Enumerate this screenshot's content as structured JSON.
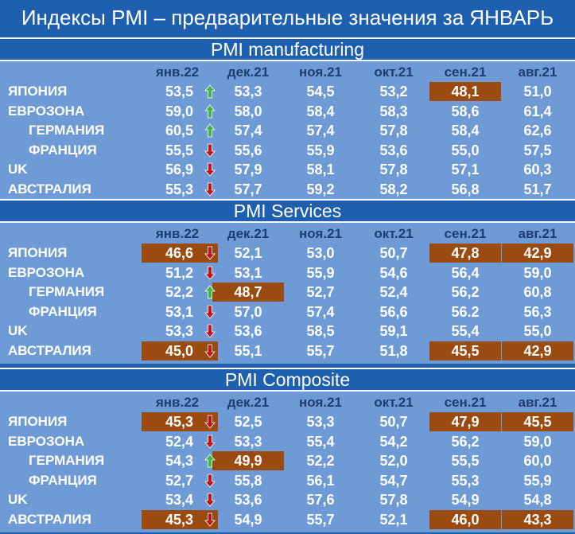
{
  "title": "Индексы PMI – предварительные значения за ЯНВАРЬ",
  "columns": [
    "янв.22",
    "дек.21",
    "ноя.21",
    "окт.21",
    "сен.21",
    "авг.21"
  ],
  "colors": {
    "background": "#1f5fb0",
    "panel": "#6e9bd6",
    "highlight": "#9b4a10",
    "up": "#3fb84a",
    "down": "#c0151a"
  },
  "sections": [
    {
      "title": "PMI manufacturing",
      "rows": [
        {
          "label": "ЯПОНИЯ",
          "indent": false,
          "values": [
            "53,5",
            "53,3",
            "54,5",
            "53,2",
            "48,1",
            "51,0"
          ],
          "trend": "up",
          "highlight": [
            false,
            false,
            false,
            false,
            true,
            false
          ]
        },
        {
          "label": "ЕВРОЗОНА",
          "indent": false,
          "values": [
            "59,0",
            "58,0",
            "58,4",
            "58,3",
            "58,6",
            "61,4"
          ],
          "trend": "up",
          "highlight": [
            false,
            false,
            false,
            false,
            false,
            false
          ]
        },
        {
          "label": "ГЕРМАНИЯ",
          "indent": true,
          "values": [
            "60,5",
            "57,4",
            "57,4",
            "57,8",
            "58,4",
            "62,6"
          ],
          "trend": "up",
          "highlight": [
            false,
            false,
            false,
            false,
            false,
            false
          ]
        },
        {
          "label": "ФРАНЦИЯ",
          "indent": true,
          "values": [
            "55,5",
            "55,6",
            "55,9",
            "53,6",
            "55,0",
            "57,5"
          ],
          "trend": "down",
          "highlight": [
            false,
            false,
            false,
            false,
            false,
            false
          ]
        },
        {
          "label": "UK",
          "indent": false,
          "values": [
            "56,9",
            "57,9",
            "58,1",
            "57,8",
            "57,1",
            "60,3"
          ],
          "trend": "down",
          "highlight": [
            false,
            false,
            false,
            false,
            false,
            false
          ]
        },
        {
          "label": "АВСТРАЛИЯ",
          "indent": false,
          "values": [
            "55,3",
            "57,7",
            "59,2",
            "58,2",
            "56,8",
            "51,7"
          ],
          "trend": "down",
          "highlight": [
            false,
            false,
            false,
            false,
            false,
            false
          ]
        }
      ]
    },
    {
      "title": "PMI Services",
      "rows": [
        {
          "label": "ЯПОНИЯ",
          "indent": false,
          "values": [
            "46,6",
            "52,1",
            "53,0",
            "50,7",
            "47,8",
            "42,9"
          ],
          "trend": "down",
          "highlight": [
            true,
            false,
            false,
            false,
            true,
            true
          ]
        },
        {
          "label": "ЕВРОЗОНА",
          "indent": false,
          "values": [
            "51,2",
            "53,1",
            "55,9",
            "54,6",
            "56,4",
            "59,0"
          ],
          "trend": "down",
          "highlight": [
            false,
            false,
            false,
            false,
            false,
            false
          ]
        },
        {
          "label": "ГЕРМАНИЯ",
          "indent": true,
          "values": [
            "52,2",
            "48,7",
            "52,7",
            "52,4",
            "56,2",
            "60,8"
          ],
          "trend": "up",
          "highlight": [
            false,
            true,
            false,
            false,
            false,
            false
          ]
        },
        {
          "label": "ФРАНЦИЯ",
          "indent": true,
          "values": [
            "53,1",
            "57,0",
            "57,4",
            "56,6",
            "56.2",
            "56,3"
          ],
          "trend": "down",
          "highlight": [
            false,
            false,
            false,
            false,
            false,
            false
          ]
        },
        {
          "label": "UK",
          "indent": false,
          "values": [
            "53,3",
            "53,6",
            "58,5",
            "59,1",
            "55,4",
            "55,0"
          ],
          "trend": "down",
          "highlight": [
            false,
            false,
            false,
            false,
            false,
            false
          ]
        },
        {
          "label": "АВСТРАЛИЯ",
          "indent": false,
          "values": [
            "45,0",
            "55,1",
            "55,7",
            "51,8",
            "45,5",
            "42,9"
          ],
          "trend": "down",
          "highlight": [
            true,
            false,
            false,
            false,
            true,
            true
          ]
        }
      ]
    },
    {
      "title": "PMI Composite",
      "rows": [
        {
          "label": "ЯПОНИЯ",
          "indent": false,
          "values": [
            "45,3",
            "52,5",
            "53,3",
            "50,7",
            "47,9",
            "45,5"
          ],
          "trend": "down",
          "highlight": [
            true,
            false,
            false,
            false,
            true,
            true
          ]
        },
        {
          "label": "ЕВРОЗОНА",
          "indent": false,
          "values": [
            "52,4",
            "53,3",
            "55,4",
            "54,2",
            "56,2",
            "59,0"
          ],
          "trend": "down",
          "highlight": [
            false,
            false,
            false,
            false,
            false,
            false
          ]
        },
        {
          "label": "ГЕРМАНИЯ",
          "indent": true,
          "values": [
            "54,3",
            "49,9",
            "52,2",
            "52,0",
            "55,5",
            "60,0"
          ],
          "trend": "up",
          "highlight": [
            false,
            true,
            false,
            false,
            false,
            false
          ]
        },
        {
          "label": "ФРАНЦИЯ",
          "indent": true,
          "values": [
            "52,7",
            "55,8",
            "56,1",
            "54,7",
            "55,3",
            "55,9"
          ],
          "trend": "down",
          "highlight": [
            false,
            false,
            false,
            false,
            false,
            false
          ]
        },
        {
          "label": "UK",
          "indent": false,
          "values": [
            "53,4",
            "53,6",
            "57,6",
            "57,8",
            "54,9",
            "54,8"
          ],
          "trend": "down",
          "highlight": [
            false,
            false,
            false,
            false,
            false,
            false
          ]
        },
        {
          "label": "АВСТРАЛИЯ",
          "indent": false,
          "values": [
            "45,3",
            "54,9",
            "55,7",
            "52,1",
            "46,0",
            "43,3"
          ],
          "trend": "down",
          "highlight": [
            true,
            false,
            false,
            false,
            true,
            true
          ]
        }
      ]
    }
  ]
}
